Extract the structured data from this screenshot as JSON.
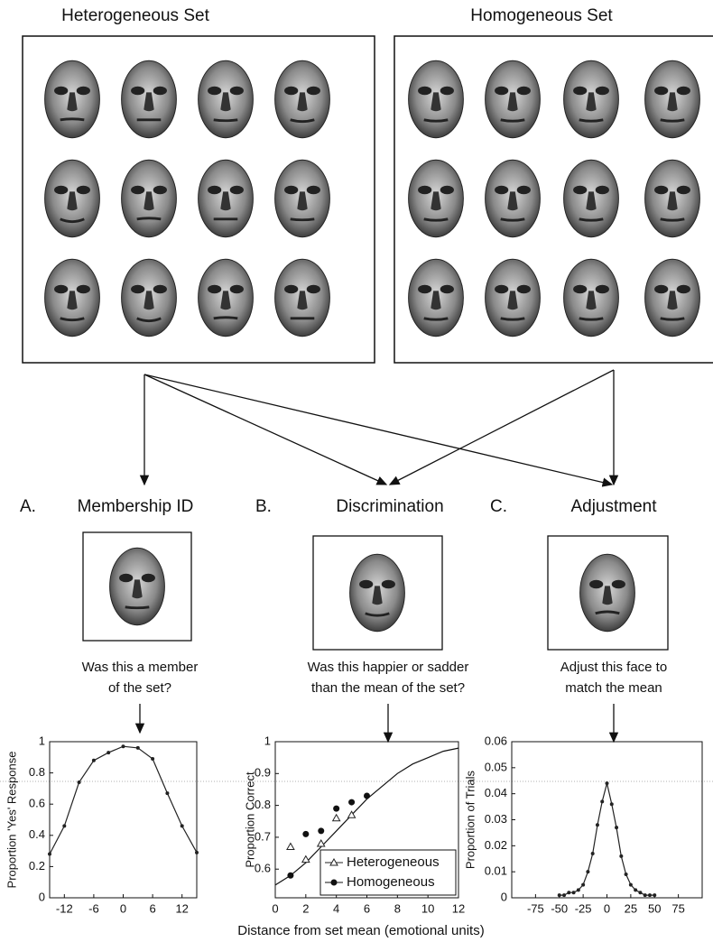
{
  "sets": [
    {
      "title": "Heterogeneous Set"
    },
    {
      "title": "Homogeneous Set"
    }
  ],
  "panels": [
    {
      "letter": "A.",
      "title": "Membership ID",
      "question": [
        "Was this a member",
        "of the set?"
      ]
    },
    {
      "letter": "B.",
      "title": "Discrimination",
      "question": [
        "Was this happier or sadder",
        "than the mean of the set?"
      ]
    },
    {
      "letter": "C.",
      "title": "Adjustment",
      "question": [
        "Adjust this face to",
        "match the mean"
      ]
    }
  ],
  "x_label": "Distance from set mean (emotional units)",
  "chart_data": [
    {
      "type": "line",
      "y_label": "Proportion 'Yes' Response",
      "color": "#222",
      "x": [
        -15,
        -12,
        -9,
        -6,
        -3,
        0,
        3,
        6,
        9,
        12,
        15
      ],
      "values": [
        0.28,
        0.46,
        0.74,
        0.88,
        0.93,
        0.97,
        0.96,
        0.89,
        0.67,
        0.46,
        0.29
      ],
      "xlim": [
        -15,
        15
      ],
      "xticks": [
        -12,
        -6,
        0,
        6,
        12
      ],
      "ylim": [
        0,
        1
      ],
      "yticks": [
        0,
        0.2,
        0.4,
        0.6,
        0.8,
        1
      ]
    },
    {
      "type": "scatter",
      "y_label": "Proportion Correct",
      "legend": "lower right",
      "series": [
        {
          "name": "Heterogeneous",
          "marker": "triangle-open",
          "color": "#222",
          "x": [
            1,
            2,
            3,
            4,
            5
          ],
          "values": [
            0.67,
            0.63,
            0.68,
            0.76,
            0.77
          ]
        },
        {
          "name": "Homogeneous",
          "marker": "circle",
          "color": "#111",
          "x": [
            1,
            2,
            3,
            4,
            5,
            6
          ],
          "values": [
            0.58,
            0.71,
            0.72,
            0.79,
            0.81,
            0.83
          ]
        }
      ],
      "fit": {
        "x": [
          0,
          1,
          2,
          3,
          4,
          5,
          6,
          7,
          8,
          9,
          10,
          11,
          12
        ],
        "values": [
          0.55,
          0.58,
          0.62,
          0.67,
          0.72,
          0.77,
          0.82,
          0.86,
          0.9,
          0.93,
          0.95,
          0.97,
          0.98
        ]
      },
      "xlim": [
        0,
        12
      ],
      "xticks": [
        0,
        2,
        4,
        6,
        8,
        10,
        12
      ],
      "ylim": [
        0.51,
        1
      ],
      "yticks": [
        0.6,
        0.7,
        0.8,
        0.9,
        1
      ]
    },
    {
      "type": "line",
      "y_label": "Proportion of Trials",
      "color": "#222",
      "x": [
        -50,
        -45,
        -40,
        -35,
        -30,
        -25,
        -20,
        -15,
        -10,
        -5,
        0,
        5,
        10,
        15,
        20,
        25,
        30,
        35,
        40,
        45,
        50
      ],
      "values": [
        0.001,
        0.001,
        0.002,
        0.002,
        0.003,
        0.005,
        0.01,
        0.017,
        0.028,
        0.037,
        0.044,
        0.036,
        0.027,
        0.016,
        0.009,
        0.005,
        0.003,
        0.002,
        0.001,
        0.001,
        0.001
      ],
      "xlim": [
        -100,
        100
      ],
      "xticks": [
        -75,
        -50,
        -25,
        0,
        25,
        50,
        75
      ],
      "ylim": [
        0,
        0.06
      ],
      "yticks": [
        0,
        0.01,
        0.02,
        0.03,
        0.04,
        0.05,
        0.06
      ]
    }
  ]
}
